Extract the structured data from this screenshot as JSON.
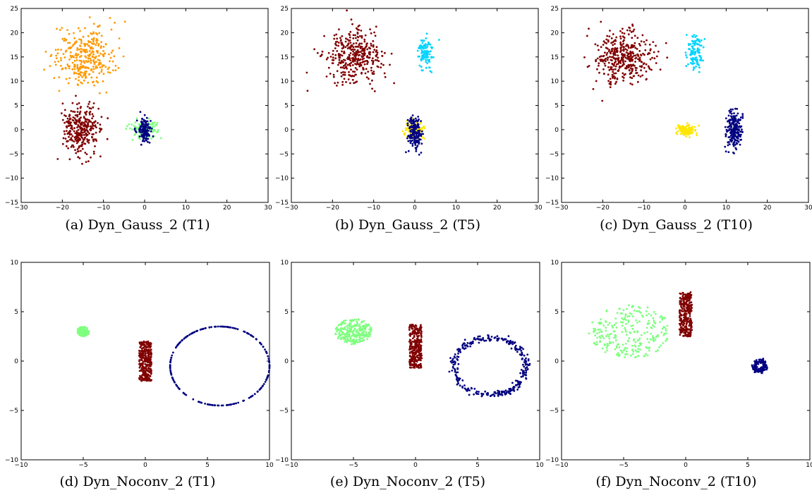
{
  "chart_data": [
    {
      "type": "scatter",
      "caption": "(a) Dyn_Gauss_2 (T1)",
      "xlim": [
        -30,
        30
      ],
      "ylim": [
        -15,
        25
      ],
      "xticks": [
        -30,
        -20,
        -10,
        0,
        10,
        20,
        30
      ],
      "yticks": [
        -15,
        -10,
        -5,
        0,
        5,
        10,
        15,
        20,
        25
      ],
      "series": [
        {
          "color": "#ff9900",
          "shape": "gaussian",
          "center": [
            -14.5,
            15.0
          ],
          "spread": [
            3.6,
            3.0
          ],
          "count": 320
        },
        {
          "color": "#800000",
          "shape": "gaussian",
          "center": [
            -15.5,
            0.0
          ],
          "spread": [
            2.2,
            2.7
          ],
          "count": 300
        },
        {
          "color": "#7fff7f",
          "shape": "gaussian",
          "center": [
            0.0,
            0.0
          ],
          "spread": [
            1.8,
            1.0
          ],
          "count": 110
        },
        {
          "color": "#000080",
          "shape": "gaussian",
          "center": [
            0.0,
            0.0
          ],
          "spread": [
            0.8,
            1.3
          ],
          "count": 130
        }
      ]
    },
    {
      "type": "scatter",
      "caption": "(b) Dyn_Gauss_2 (T5)",
      "xlim": [
        -30,
        30
      ],
      "ylim": [
        -15,
        25
      ],
      "xticks": [
        -30,
        -20,
        -10,
        0,
        10,
        20,
        30
      ],
      "yticks": [
        -15,
        -10,
        -5,
        0,
        5,
        10,
        15,
        20,
        25
      ],
      "series": [
        {
          "color": "#800000",
          "shape": "gaussian",
          "center": [
            -15.0,
            15.0
          ],
          "spread": [
            3.4,
            2.6
          ],
          "count": 360
        },
        {
          "color": "#00d4ff",
          "shape": "gaussian",
          "center": [
            2.5,
            16.0
          ],
          "spread": [
            1.0,
            1.5
          ],
          "count": 110
        },
        {
          "color": "#ffe600",
          "shape": "gaussian",
          "center": [
            0.0,
            0.0
          ],
          "spread": [
            1.3,
            0.9
          ],
          "count": 110
        },
        {
          "color": "#000080",
          "shape": "gaussian",
          "center": [
            0.0,
            -0.5
          ],
          "spread": [
            0.9,
            1.7
          ],
          "count": 170
        }
      ]
    },
    {
      "type": "scatter",
      "caption": "(c) Dyn_Gauss_2 (T10)",
      "xlim": [
        -30,
        30
      ],
      "ylim": [
        -15,
        25
      ],
      "xticks": [
        -30,
        -20,
        -10,
        0,
        10,
        20,
        30
      ],
      "yticks": [
        -15,
        -10,
        -5,
        0,
        5,
        10,
        15,
        20,
        25
      ],
      "series": [
        {
          "color": "#800000",
          "shape": "gaussian",
          "center": [
            -15.0,
            15.0
          ],
          "spread": [
            3.4,
            2.6
          ],
          "count": 380
        },
        {
          "color": "#00d4ff",
          "shape": "gaussian",
          "center": [
            2.5,
            16.0
          ],
          "spread": [
            1.0,
            1.7
          ],
          "count": 110
        },
        {
          "color": "#ffe600",
          "shape": "gaussian",
          "center": [
            0.0,
            0.0
          ],
          "spread": [
            1.3,
            0.6
          ],
          "count": 110
        },
        {
          "color": "#000080",
          "shape": "gaussian",
          "center": [
            12.0,
            0.0
          ],
          "spread": [
            1.0,
            2.0
          ],
          "count": 220
        }
      ]
    },
    {
      "type": "scatter",
      "caption": "(d) Dyn_Noconv_2 (T1)",
      "xlim": [
        -10,
        10
      ],
      "ylim": [
        -10,
        10
      ],
      "xticks": [
        -10,
        -5,
        0,
        5,
        10
      ],
      "yticks": [
        -10,
        -5,
        0,
        5,
        10
      ],
      "series": [
        {
          "color": "#7fff7f",
          "shape": "disk",
          "center": [
            -5.0,
            3.0
          ],
          "radius": [
            0.5,
            0.5
          ],
          "count": 120
        },
        {
          "color": "#800000",
          "shape": "rect",
          "xrange": [
            -0.5,
            0.5
          ],
          "yrange": [
            -2.0,
            2.0
          ],
          "count": 300
        },
        {
          "color": "#000080",
          "shape": "ring",
          "center": [
            6.0,
            -0.5
          ],
          "radius": [
            4.0,
            4.0
          ],
          "noise": 0.0,
          "count": 200
        }
      ]
    },
    {
      "type": "scatter",
      "caption": "(e) Dyn_Noconv_2 (T5)",
      "xlim": [
        -10,
        10
      ],
      "ylim": [
        -10,
        10
      ],
      "xticks": [
        -10,
        -5,
        0,
        5,
        10
      ],
      "yticks": [
        -10,
        -5,
        0,
        5,
        10
      ],
      "series": [
        {
          "color": "#7fff7f",
          "shape": "disk",
          "center": [
            -5.0,
            3.0
          ],
          "radius": [
            1.5,
            1.3
          ],
          "count": 250
        },
        {
          "color": "#800000",
          "shape": "rect",
          "xrange": [
            -0.5,
            0.5
          ],
          "yrange": [
            -0.7,
            3.7
          ],
          "count": 300
        },
        {
          "color": "#000080",
          "shape": "ring",
          "center": [
            6.0,
            -0.5
          ],
          "radius": [
            2.9,
            2.9
          ],
          "noise": 0.18,
          "count": 300
        }
      ]
    },
    {
      "type": "scatter",
      "caption": "(f) Dyn_Noconv_2 (T10)",
      "xlim": [
        -10,
        10
      ],
      "ylim": [
        -10,
        10
      ],
      "xticks": [
        -10,
        -5,
        0,
        5,
        10
      ],
      "yticks": [
        -10,
        -5,
        0,
        5,
        10
      ],
      "series": [
        {
          "color": "#7fff7f",
          "shape": "disk",
          "center": [
            -4.5,
            3.0
          ],
          "radius": [
            3.3,
            2.7
          ],
          "count": 260
        },
        {
          "color": "#800000",
          "shape": "rect",
          "xrange": [
            -0.5,
            0.5
          ],
          "yrange": [
            2.5,
            7.0
          ],
          "count": 300
        },
        {
          "color": "#000080",
          "shape": "ring",
          "center": [
            6.0,
            -0.5
          ],
          "radius": [
            0.5,
            0.5
          ],
          "noise": 0.12,
          "count": 150
        }
      ]
    }
  ]
}
